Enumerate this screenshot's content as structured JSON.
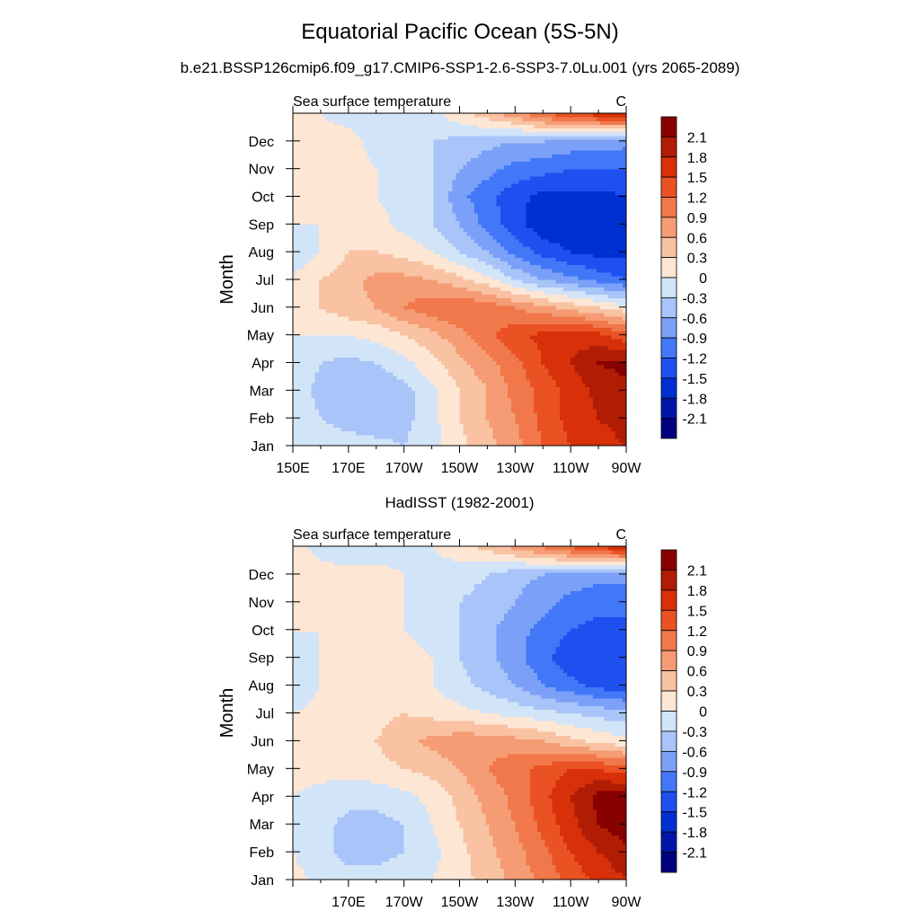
{
  "figure": {
    "title": "Equatorial Pacific Ocean (5S-5N)",
    "subtitle": "b.e21.BSSP126cmip6.f09_g17.CMIP6-SSP1-2.6-SSP3-7.0Lu.001 (yrs 2065-2089)",
    "colors": [
      "#00007f",
      "#0016a8",
      "#0030d2",
      "#1e50f0",
      "#4278f8",
      "#7aa0f8",
      "#a8c4f8",
      "#d2e4f8",
      "#fde6d4",
      "#f9c2a2",
      "#f59c74",
      "#f0784a",
      "#ea5224",
      "#d83008",
      "#b01c04",
      "#880000"
    ]
  },
  "chart_data": [
    {
      "type": "heatmap",
      "panel_title": "",
      "left_label": "Sea surface temperature",
      "right_label": "C",
      "ylabel": "Month",
      "xlabel": "",
      "x_tick_labels": [
        "150E",
        "170E",
        "170W",
        "150W",
        "130W",
        "110W",
        "90W"
      ],
      "y_tick_labels": [
        "Jan",
        "Feb",
        "Mar",
        "Apr",
        "May",
        "Jun",
        "Jul",
        "Aug",
        "Sep",
        "Oct",
        "Nov",
        "Dec"
      ],
      "colorbar_labels": [
        "2.1",
        "1.8",
        "1.5",
        "1.2",
        "0.9",
        "0.6",
        "0.3",
        "0",
        "-0.3",
        "-0.6",
        "-0.9",
        "-1.2",
        "-1.5",
        "-1.8",
        "-2.1"
      ],
      "x_lon": [
        150,
        160,
        170,
        180,
        190,
        200,
        210,
        220,
        230,
        240,
        250,
        260,
        270
      ],
      "months": [
        "Jan",
        "Feb",
        "Mar",
        "Apr",
        "May",
        "Jun",
        "Jul",
        "Aug",
        "Sep",
        "Oct",
        "Nov",
        "Dec",
        "Jan"
      ],
      "values": [
        [
          0.0,
          0.0,
          -0.1,
          -0.2,
          -0.3,
          -0.1,
          0.2,
          0.5,
          0.8,
          1.2,
          1.5,
          1.7,
          1.8
        ],
        [
          -0.1,
          -0.3,
          -0.5,
          -0.5,
          -0.4,
          -0.1,
          0.3,
          0.6,
          0.9,
          1.3,
          1.6,
          1.8,
          1.9
        ],
        [
          -0.1,
          -0.4,
          -0.6,
          -0.6,
          -0.4,
          -0.1,
          0.3,
          0.6,
          1.0,
          1.3,
          1.6,
          1.9,
          2.0
        ],
        [
          -0.1,
          -0.3,
          -0.4,
          -0.3,
          -0.1,
          0.2,
          0.5,
          0.8,
          1.1,
          1.5,
          1.8,
          2.1,
          2.2
        ],
        [
          0.0,
          0.0,
          0.0,
          0.1,
          0.3,
          0.5,
          0.8,
          1.1,
          1.4,
          1.6,
          1.7,
          1.6,
          1.3
        ],
        [
          0.2,
          0.3,
          0.5,
          0.6,
          0.9,
          1.1,
          1.2,
          1.1,
          0.9,
          0.7,
          0.5,
          0.3,
          0.1
        ],
        [
          0.1,
          0.3,
          0.5,
          0.7,
          0.7,
          0.6,
          0.4,
          0.1,
          -0.3,
          -0.6,
          -0.8,
          -1.0,
          -1.2
        ],
        [
          -0.3,
          0.0,
          0.3,
          0.3,
          0.2,
          0.0,
          -0.3,
          -0.6,
          -1.0,
          -1.3,
          -1.5,
          -1.6,
          -1.6
        ],
        [
          0.0,
          0.0,
          0.1,
          0.1,
          -0.1,
          -0.3,
          -0.6,
          -1.0,
          -1.4,
          -1.7,
          -1.8,
          -1.7,
          -1.6
        ],
        [
          0.0,
          0.0,
          0.1,
          0.0,
          -0.1,
          -0.3,
          -0.8,
          -1.1,
          -1.4,
          -1.6,
          -1.6,
          -1.6,
          -1.5
        ],
        [
          0.1,
          0.1,
          0.1,
          0.0,
          -0.1,
          -0.3,
          -0.6,
          -0.8,
          -1.0,
          -1.1,
          -1.2,
          -1.2,
          -1.2
        ],
        [
          0.1,
          0.1,
          0.1,
          -0.1,
          -0.2,
          -0.3,
          -0.4,
          -0.5,
          -0.6,
          -0.6,
          -0.7,
          -0.7,
          -0.8
        ],
        [
          0.0,
          0.0,
          -0.1,
          -0.2,
          -0.3,
          -0.1,
          0.2,
          0.5,
          0.8,
          1.2,
          1.5,
          1.7,
          1.8
        ]
      ],
      "xlim": [
        150,
        270
      ],
      "levels": [
        -2.1,
        -1.8,
        -1.5,
        -1.2,
        -0.9,
        -0.6,
        -0.3,
        0,
        0.3,
        0.6,
        0.9,
        1.2,
        1.5,
        1.8,
        2.1
      ]
    },
    {
      "type": "heatmap",
      "panel_title": "HadISST (1982-2001)",
      "left_label": "Sea surface temperature",
      "right_label": "C",
      "ylabel": "Month",
      "xlabel": "",
      "x_tick_labels": [
        "170E",
        "170W",
        "150W",
        "130W",
        "110W",
        "90W"
      ],
      "y_tick_labels": [
        "Jan",
        "Feb",
        "Mar",
        "Apr",
        "May",
        "Jun",
        "Jul",
        "Aug",
        "Sep",
        "Oct",
        "Nov",
        "Dec"
      ],
      "colorbar_labels": [
        "2.1",
        "1.8",
        "1.5",
        "1.2",
        "0.9",
        "0.6",
        "0.3",
        "0",
        "-0.3",
        "-0.6",
        "-0.9",
        "-1.2",
        "-1.5",
        "-1.8",
        "-2.1"
      ],
      "x_lon": [
        150,
        160,
        170,
        180,
        190,
        200,
        210,
        220,
        230,
        240,
        250,
        260,
        270
      ],
      "months": [
        "Jan",
        "Feb",
        "Mar",
        "Apr",
        "May",
        "Jun",
        "Jul",
        "Aug",
        "Sep",
        "Oct",
        "Nov",
        "Dec",
        "Jan"
      ],
      "values": [
        [
          0.1,
          -0.1,
          -0.2,
          -0.2,
          -0.1,
          0.0,
          0.2,
          0.4,
          0.7,
          1.0,
          1.3,
          1.6,
          1.8
        ],
        [
          0.0,
          -0.2,
          -0.4,
          -0.4,
          -0.3,
          -0.1,
          0.2,
          0.5,
          0.8,
          1.1,
          1.5,
          1.8,
          2.0
        ],
        [
          0.0,
          -0.2,
          -0.4,
          -0.4,
          -0.3,
          0.0,
          0.3,
          0.6,
          0.9,
          1.3,
          1.7,
          2.1,
          2.3
        ],
        [
          0.0,
          -0.1,
          -0.2,
          -0.2,
          -0.1,
          0.1,
          0.4,
          0.7,
          1.0,
          1.4,
          1.8,
          2.2,
          2.3
        ],
        [
          0.1,
          0.1,
          0.1,
          0.2,
          0.3,
          0.4,
          0.6,
          0.9,
          1.1,
          1.3,
          1.5,
          1.5,
          1.3
        ],
        [
          0.1,
          0.1,
          0.2,
          0.3,
          0.5,
          0.7,
          0.8,
          0.8,
          0.7,
          0.6,
          0.4,
          0.2,
          0.1
        ],
        [
          0.0,
          0.1,
          0.2,
          0.2,
          0.3,
          0.2,
          0.1,
          0.0,
          -0.1,
          -0.2,
          -0.3,
          -0.4,
          -0.5
        ],
        [
          -0.2,
          0.0,
          0.1,
          0.1,
          0.1,
          0.0,
          -0.2,
          -0.4,
          -0.6,
          -0.9,
          -1.1,
          -1.3,
          -1.4
        ],
        [
          -0.1,
          0.0,
          0.3,
          0.2,
          0.1,
          0.0,
          -0.3,
          -0.5,
          -0.8,
          -1.1,
          -1.4,
          -1.5,
          -1.5
        ],
        [
          0.0,
          0.0,
          0.1,
          0.1,
          0.0,
          -0.1,
          -0.3,
          -0.5,
          -0.8,
          -1.0,
          -1.2,
          -1.3,
          -1.3
        ],
        [
          0.1,
          0.1,
          0.1,
          0.1,
          0.0,
          -0.1,
          -0.3,
          -0.4,
          -0.6,
          -0.8,
          -1.0,
          -1.1,
          -1.1
        ],
        [
          0.1,
          0.1,
          0.1,
          0.1,
          0.0,
          -0.1,
          -0.2,
          -0.3,
          -0.5,
          -0.6,
          -0.7,
          -0.8,
          -0.8
        ],
        [
          0.1,
          -0.1,
          -0.2,
          -0.2,
          -0.1,
          0.0,
          0.2,
          0.4,
          0.7,
          1.0,
          1.3,
          1.6,
          1.8
        ]
      ],
      "xlim": [
        150,
        270
      ],
      "levels": [
        -2.1,
        -1.8,
        -1.5,
        -1.2,
        -0.9,
        -0.6,
        -0.3,
        0,
        0.3,
        0.6,
        0.9,
        1.2,
        1.5,
        1.8,
        2.1
      ]
    }
  ]
}
